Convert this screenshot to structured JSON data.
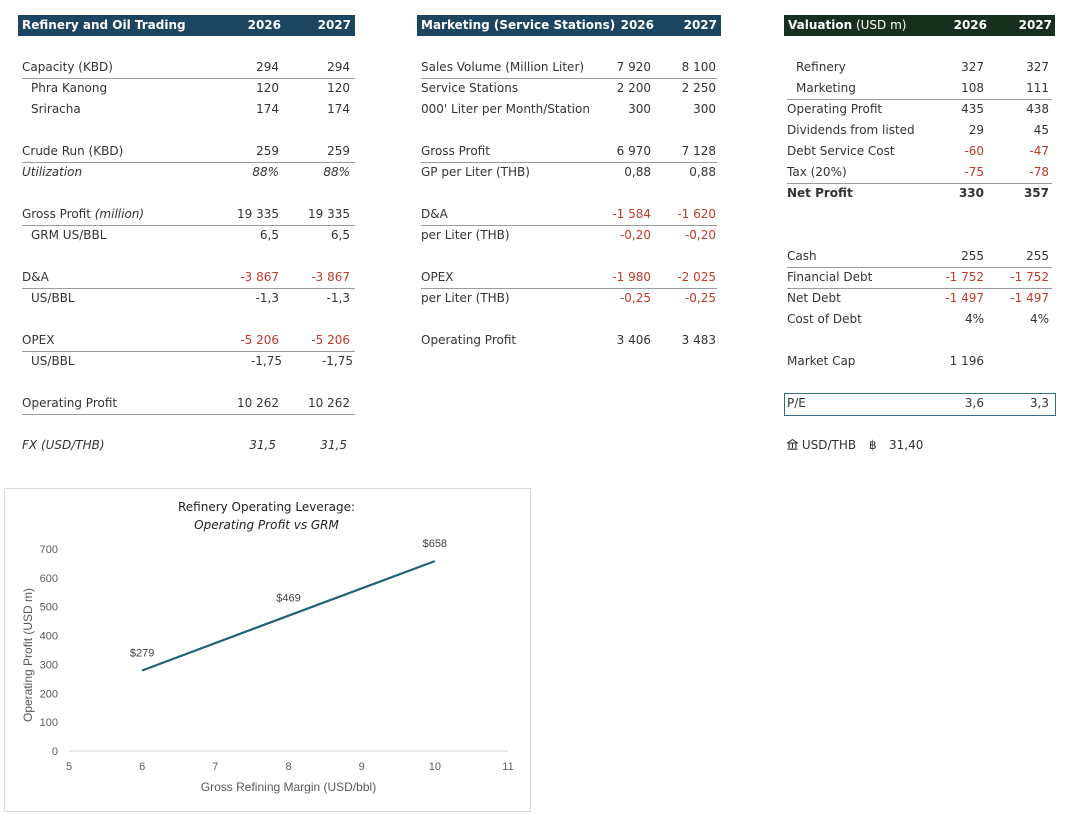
{
  "refinery": {
    "header": {
      "title": "Refinery and Oil Trading",
      "y2026": "2026",
      "y2027": "2027"
    },
    "rows": [
      {
        "label": "Capacity (KBD)",
        "v1": "294",
        "v2": "294"
      },
      {
        "label": "Phra Kanong",
        "v1": "120",
        "v2": "120"
      },
      {
        "label": "Sriracha",
        "v1": "174",
        "v2": "174"
      },
      {
        "label": "Crude Run (KBD)",
        "v1": "259",
        "v2": "259"
      },
      {
        "label": "Utilization",
        "v1": "88%",
        "v2": "88%"
      },
      {
        "label_main": "Gross Profit ",
        "label_sub": "(million)",
        "v1": "19 335",
        "v2": "19 335"
      },
      {
        "label": "GRM US/BBL",
        "v1": "6,5",
        "v2": "6,5"
      },
      {
        "label": "D&A",
        "v1": "-3 867",
        "v2": "-3 867"
      },
      {
        "label": "US/BBL",
        "v1": "-1,3",
        "v2": "-1,3"
      },
      {
        "label": "OPEX",
        "v1": "-5 206",
        "v2": "-5 206"
      },
      {
        "label": "US/BBL",
        "v1": "-1,75",
        "v2": "-1,75"
      },
      {
        "label": "Operating Profit",
        "v1": "10 262",
        "v2": "10 262"
      },
      {
        "label": "FX (USD/THB)",
        "v1": "31,5",
        "v2": "31,5"
      }
    ]
  },
  "marketing": {
    "header": {
      "title": "Marketing (Service Stations)",
      "y2026": "2026",
      "y2027": "2027"
    },
    "rows": [
      {
        "label": "Sales Volume (Million Liter)",
        "v1": "7 920",
        "v2": "8 100"
      },
      {
        "label": "Service Stations",
        "v1": "2 200",
        "v2": "2 250"
      },
      {
        "label": "000' Liter per Month/Station",
        "v1": "300",
        "v2": "300"
      },
      {
        "label": "Gross Profit",
        "v1": "6 970",
        "v2": "7 128"
      },
      {
        "label": "GP per Liter (THB)",
        "v1": "0,88",
        "v2": "0,88"
      },
      {
        "label": "D&A",
        "v1": "-1 584",
        "v2": "-1 620"
      },
      {
        "label": "per Liter (THB)",
        "v1": "-0,20",
        "v2": "-0,20"
      },
      {
        "label": "OPEX",
        "v1": "-1 980",
        "v2": "-2 025"
      },
      {
        "label": "per Liter (THB)",
        "v1": "-0,25",
        "v2": "-0,25"
      },
      {
        "label": "Operating Profit",
        "v1": "3 406",
        "v2": "3 483"
      }
    ]
  },
  "valuation": {
    "header": {
      "title_main": "Valuation",
      "title_unit": " (USD m)",
      "y2026": "2026",
      "y2027": "2027"
    },
    "rows": [
      {
        "label": "Refinery",
        "v1": "327",
        "v2": "327"
      },
      {
        "label": "Marketing",
        "v1": "108",
        "v2": "111"
      },
      {
        "label": "Operating Profit",
        "v1": "435",
        "v2": "438"
      },
      {
        "label": "Dividends from listed",
        "v1": "29",
        "v2": "45"
      },
      {
        "label": "Debt Service Cost",
        "v1": "-60",
        "v2": "-47"
      },
      {
        "label": "Tax (20%)",
        "v1": "-75",
        "v2": "-78"
      },
      {
        "label": "Net Profit",
        "v1": "330",
        "v2": "357"
      },
      {
        "label": "Cash",
        "v1": "255",
        "v2": "255"
      },
      {
        "label": "Financial Debt",
        "v1": "-1 752",
        "v2": "-1 752"
      },
      {
        "label": "Net Debt",
        "v1": "-1 497",
        "v2": "-1 497"
      },
      {
        "label": "Cost of Debt",
        "v1": "4%",
        "v2": "4%"
      },
      {
        "label": "Market Cap",
        "v1": "1 196",
        "v2": ""
      },
      {
        "label": "P/E",
        "v1": "3,6",
        "v2": "3,3"
      }
    ],
    "fx": {
      "label": "USD/THB",
      "currency_symbol": "฿",
      "value": "31,40"
    }
  },
  "colors": {
    "refinery_header": "#1b4560",
    "marketing_header": "#1b4560",
    "valuation_header": "#17301d",
    "negative": "#c0392b",
    "line": "#22617a"
  },
  "chart_data": {
    "type": "line",
    "title": "Refinery Operating Leverage:",
    "subtitle": "Operating Profit vs GRM",
    "xlabel": "Gross Refining Margin (USD/bbl)",
    "ylabel": "Operating Profit (USD m)",
    "x": [
      6,
      8,
      10
    ],
    "y": [
      279,
      469,
      658
    ],
    "data_labels": [
      "$279",
      "$469",
      "$658"
    ],
    "xlim": [
      5,
      11
    ],
    "ylim": [
      0,
      700
    ],
    "xticks": [
      5,
      6,
      7,
      8,
      9,
      10,
      11
    ],
    "yticks": [
      0,
      100,
      200,
      300,
      400,
      500,
      600,
      700
    ],
    "grid": false,
    "legend": "none"
  }
}
